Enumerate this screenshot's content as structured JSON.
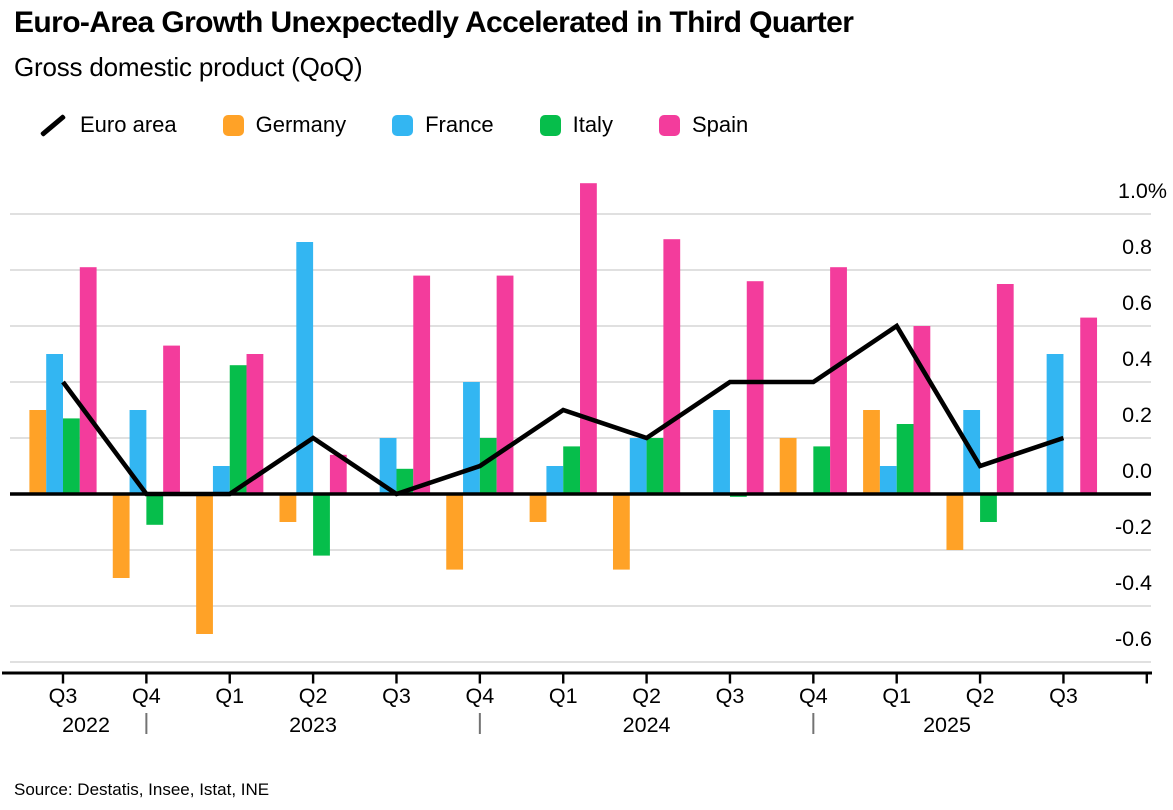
{
  "header": {
    "title": "Euro-Area Growth Unexpectedly Accelerated in Third Quarter",
    "subtitle": "Gross domestic product (QoQ)"
  },
  "legend": {
    "items": [
      {
        "label": "Euro area",
        "marker": "line",
        "color": "#000000"
      },
      {
        "label": "Germany",
        "marker": "square",
        "color": "#FFA227"
      },
      {
        "label": "France",
        "marker": "square",
        "color": "#33B6F2"
      },
      {
        "label": "Italy",
        "marker": "square",
        "color": "#06BE4B"
      },
      {
        "label": "Spain",
        "marker": "square",
        "color": "#F33C9C"
      }
    ]
  },
  "source": "Source: Destatis, Insee, Istat, INE",
  "chart_data": {
    "type": "bar+line",
    "title": "Gross domestic product (QoQ)",
    "categories": [
      "Q3 2022",
      "Q4 2022",
      "Q1 2023",
      "Q2 2023",
      "Q3 2023",
      "Q4 2023",
      "Q1 2024",
      "Q2 2024",
      "Q3 2024",
      "Q4 2024",
      "Q1 2025",
      "Q2 2025",
      "Q3 2025"
    ],
    "x_tick_labels": [
      "Q3",
      "Q4",
      "Q1",
      "Q2",
      "Q3",
      "Q4",
      "Q1",
      "Q2",
      "Q3",
      "Q4",
      "Q1",
      "Q2",
      "Q3"
    ],
    "years": [
      "2022",
      "2023",
      "2024",
      "2025"
    ],
    "series": [
      {
        "name": "Euro area",
        "type": "line",
        "color": "#000000",
        "values": [
          0.4,
          0.0,
          0.0,
          0.2,
          0.0,
          0.1,
          0.3,
          0.2,
          0.4,
          0.4,
          0.6,
          0.1,
          0.2
        ]
      },
      {
        "name": "Germany",
        "type": "bar",
        "color": "#FFA227",
        "values": [
          0.3,
          -0.3,
          -0.5,
          -0.1,
          0.0,
          -0.27,
          -0.1,
          -0.27,
          0.0,
          0.2,
          0.3,
          -0.2,
          0.0
        ]
      },
      {
        "name": "France",
        "type": "bar",
        "color": "#33B6F2",
        "values": [
          0.5,
          0.3,
          0.1,
          0.9,
          0.2,
          0.4,
          0.1,
          0.2,
          0.3,
          0.0,
          0.1,
          0.3,
          0.5
        ]
      },
      {
        "name": "Italy",
        "type": "bar",
        "color": "#06BE4B",
        "values": [
          0.27,
          -0.11,
          0.46,
          -0.22,
          0.09,
          0.2,
          0.17,
          0.2,
          -0.01,
          0.17,
          0.25,
          -0.1,
          0.0
        ]
      },
      {
        "name": "Spain",
        "type": "bar",
        "color": "#F33C9C",
        "values": [
          0.81,
          0.53,
          0.5,
          0.14,
          0.78,
          0.78,
          1.11,
          0.91,
          0.76,
          0.81,
          0.6,
          0.75,
          0.63
        ]
      }
    ],
    "y_axis": {
      "tick_labels": [
        "1.0%",
        "0.8",
        "0.6",
        "0.4",
        "0.2",
        "0.0",
        "-0.2",
        "-0.4",
        "-0.6"
      ],
      "tick_values": [
        1.0,
        0.8,
        0.6,
        0.4,
        0.2,
        0.0,
        -0.2,
        -0.4,
        -0.6
      ],
      "ylim": [
        -0.7,
        1.15
      ],
      "unit": "percent",
      "grid": true,
      "position": "right"
    },
    "legend_position": "top"
  }
}
